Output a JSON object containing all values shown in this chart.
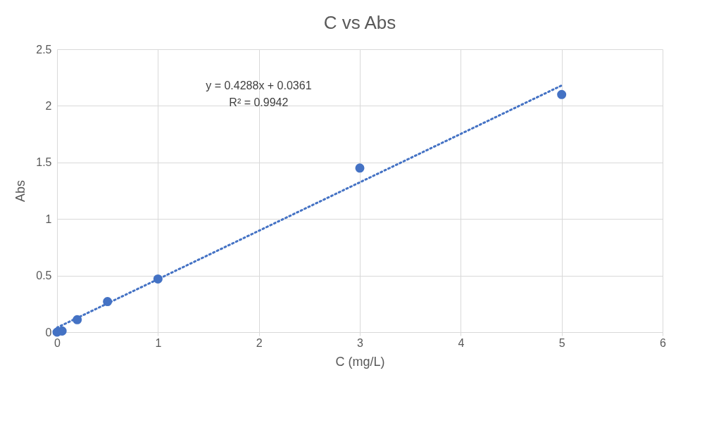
{
  "chart_data": {
    "type": "scatter",
    "title": "C vs Abs",
    "xlabel": "C (mg/L)",
    "ylabel": "Abs",
    "xlim": [
      0,
      6
    ],
    "xticks": [
      0,
      1,
      2,
      3,
      4,
      5,
      6
    ],
    "ylim": [
      0,
      2.5
    ],
    "yticks": [
      0,
      0.5,
      1,
      1.5,
      2,
      2.5
    ],
    "grid": true,
    "series": [
      {
        "marker": "circle",
        "color": "#4472c4",
        "x": [
          0,
          0.05,
          0.2,
          0.5,
          1,
          3,
          5
        ],
        "values": [
          0,
          0.01,
          0.11,
          0.27,
          0.47,
          1.45,
          2.1
        ]
      },
      {
        "type": "line",
        "line_style": "dotted",
        "color": "#4472c4",
        "x": [
          0,
          5
        ],
        "values": [
          0.04,
          2.18
        ]
      }
    ],
    "annotations": [
      "y = 0.4288x + 0.0361",
      "R² = 0.9942"
    ]
  }
}
